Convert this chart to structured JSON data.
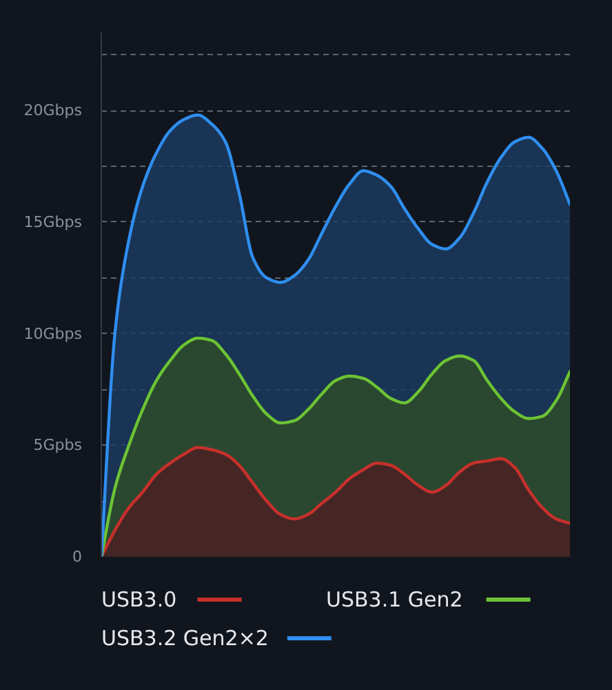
{
  "chart_data": {
    "type": "area",
    "categories": [
      null,
      null,
      null,
      null,
      null,
      null,
      null,
      null,
      null,
      null,
      null,
      null,
      null,
      null,
      null,
      null,
      null,
      null,
      null,
      null,
      null,
      null,
      null,
      null,
      null,
      null,
      null,
      null,
      null,
      null,
      null,
      null,
      null,
      null,
      null
    ],
    "series": [
      {
        "name": "USB3.0",
        "color": "#c8302c",
        "values": [
          0,
          1.2,
          2.2,
          2.9,
          3.7,
          4.2,
          4.6,
          4.9,
          4.8,
          4.6,
          4.1,
          3.3,
          2.5,
          1.9,
          1.7,
          1.9,
          2.4,
          2.9,
          3.5,
          3.9,
          4.2,
          4.1,
          3.7,
          3.2,
          2.9,
          3.2,
          3.8,
          4.2,
          4.3,
          4.4,
          4.0,
          3.0,
          2.2,
          1.7,
          1.5
        ]
      },
      {
        "name": "USB3.1 Gen2",
        "color": "#6cc334",
        "values": [
          0,
          3.1,
          5.0,
          6.6,
          7.9,
          8.8,
          9.5,
          9.8,
          9.7,
          9.1,
          8.2,
          7.2,
          6.4,
          6.0,
          6.1,
          6.6,
          7.3,
          7.9,
          8.1,
          8.0,
          7.6,
          7.1,
          6.9,
          7.4,
          8.2,
          8.8,
          9.0,
          8.8,
          7.9,
          7.1,
          6.5,
          6.2,
          6.3,
          7.0,
          8.3
        ]
      },
      {
        "name": "USB3.2 Gen2×2",
        "color": "#2f8ef0",
        "values": [
          0,
          10.1,
          14.2,
          16.6,
          18.1,
          19.1,
          19.6,
          19.8,
          19.4,
          18.6,
          16.3,
          13.4,
          12.5,
          12.3,
          12.6,
          13.3,
          14.5,
          15.7,
          16.7,
          17.3,
          17.1,
          16.6,
          15.6,
          14.7,
          14.0,
          13.8,
          14.3,
          15.4,
          16.8,
          17.9,
          18.6,
          18.8,
          18.3,
          17.3,
          15.8
        ]
      }
    ],
    "ylim": [
      0,
      23.5
    ],
    "yticks": [
      0,
      {
        "value": 2.5,
        "label": null
      },
      {
        "value": 5,
        "label": "5Gpbs"
      },
      {
        "value": 7.5,
        "label": null
      },
      {
        "value": 10,
        "label": "10Gbps"
      },
      {
        "value": 12.5,
        "label": null
      },
      {
        "value": 15,
        "label": "15Gbps"
      },
      {
        "value": 17.5,
        "label": null
      },
      {
        "value": 20,
        "label": "20Gbps"
      },
      {
        "value": 22.5,
        "label": null
      }
    ],
    "tick_labels": "y",
    "grid": "y",
    "legend": "bottom",
    "line_style": "solid"
  }
}
